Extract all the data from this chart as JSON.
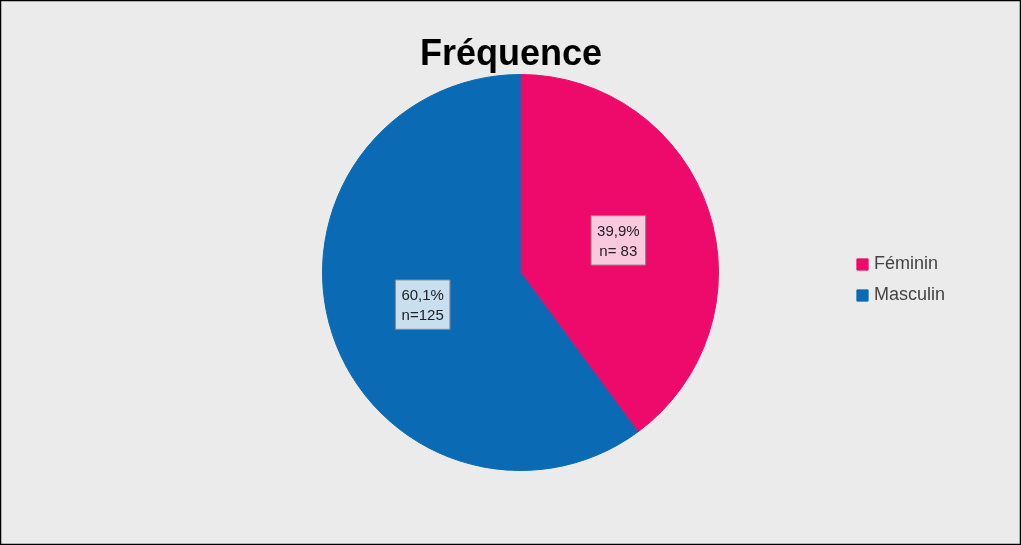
{
  "chart_data": {
    "type": "pie",
    "title": "Fréquence",
    "categories": [
      "Féminin",
      "Masculin"
    ],
    "values": [
      39.9,
      60.1
    ],
    "colors": [
      "#ee0a6a",
      "#0a6ab4"
    ],
    "value_labels": [
      "39,9%\nn= 83",
      "60,1%\nn=125"
    ],
    "legend": "right"
  }
}
